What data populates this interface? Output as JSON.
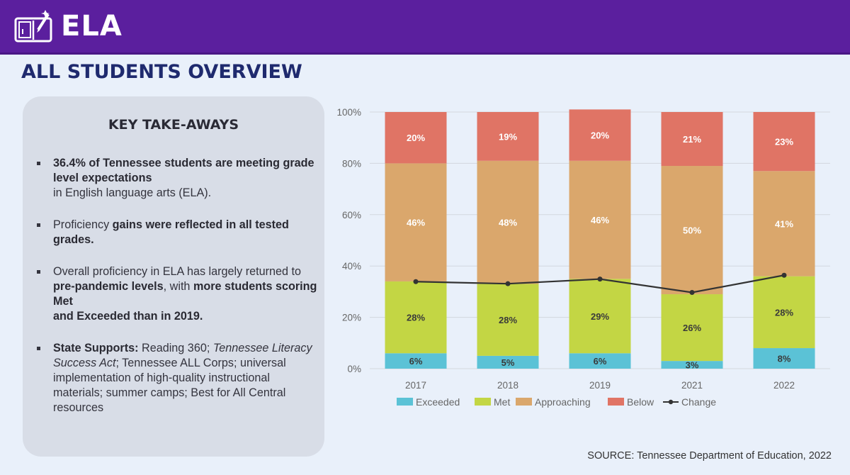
{
  "header": {
    "title": "ELA",
    "subtitle": "ALL STUDENTS OVERVIEW",
    "icon": "book-pencil-icon"
  },
  "takeaways": {
    "title": "KEY TAKE-AWAYS",
    "b1_bold": "36.4% of Tennessee students are meeting grade level expectations",
    "b1_rest": "in English language arts (ELA).",
    "b2_pre": "Proficiency ",
    "b2_bold": "gains were reflected in all tested grades.",
    "b3_pre": "Overall proficiency in ELA has largely returned to ",
    "b3_bold1": "pre-pandemic levels",
    "b3_mid": ", with ",
    "b3_bold2": "more students scoring ",
    "b3_met": "Met",
    "b3_and": "and ",
    "b3_exc": "Exceeded",
    "b3_end": " than in 2019.",
    "b4_bold": "State Supports:",
    "b4_a": " Reading 360; ",
    "b4_italic": "Tennessee Literacy Success Act",
    "b4_b": "; Tennessee ALL Corps; universal implementation of high-quality instructional materials; summer camps; Best for All Central resources"
  },
  "source": "SOURCE: Tennessee Department of Education, 2022",
  "chart_data": {
    "type": "bar",
    "stacked": true,
    "categories": [
      "2017",
      "2018",
      "2019",
      "2021",
      "2022"
    ],
    "y_ticks": [
      "0%",
      "20%",
      "40%",
      "60%",
      "80%",
      "100%"
    ],
    "ylim": [
      0,
      100
    ],
    "grid": true,
    "legend_position": "bottom",
    "series": [
      {
        "name": "Exceeded",
        "values": [
          6,
          5,
          6,
          3,
          8
        ],
        "labels": [
          "6%",
          "5%",
          "6%",
          "3%",
          "8%"
        ],
        "color": "#5bc2d6",
        "label_color": "dark"
      },
      {
        "name": "Met",
        "values": [
          28,
          28,
          29,
          26,
          28
        ],
        "labels": [
          "28%",
          "28%",
          "29%",
          "26%",
          "28%"
        ],
        "color": "#c3d644",
        "label_color": "dark"
      },
      {
        "name": "Approaching",
        "values": [
          46,
          48,
          46,
          50,
          41
        ],
        "labels": [
          "46%",
          "48%",
          "46%",
          "50%",
          "41%"
        ],
        "color": "#daa76c",
        "label_color": "light"
      },
      {
        "name": "Below",
        "values": [
          20,
          19,
          20,
          21,
          23
        ],
        "labels": [
          "20%",
          "19%",
          "20%",
          "21%",
          "23%"
        ],
        "color": "#e07465",
        "label_color": "light"
      }
    ],
    "line": {
      "name": "Change",
      "values": [
        33.9,
        33.1,
        34.9,
        29.7,
        36.4
      ],
      "color": "#333333"
    }
  }
}
